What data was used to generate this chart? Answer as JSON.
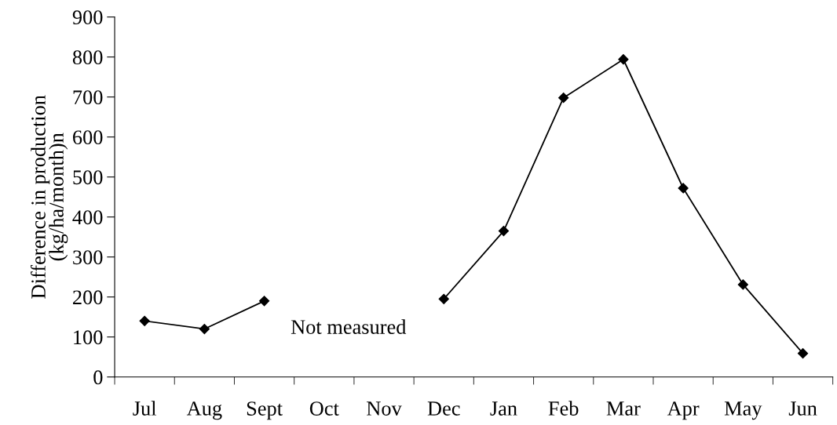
{
  "chart_data": {
    "type": "line",
    "ylabel": "Difference in production\n(kg/ha/month)n",
    "categories": [
      "Jul",
      "Aug",
      "Sept",
      "Oct",
      "Nov",
      "Dec",
      "Jan",
      "Feb",
      "Mar",
      "Apr",
      "May",
      "Jun"
    ],
    "series": [
      {
        "color": "#000000",
        "values": [
          140,
          120,
          190,
          null,
          null,
          195,
          365,
          698,
          794,
          472,
          231,
          59
        ]
      }
    ],
    "ylim": [
      0,
      900
    ],
    "yticks": [
      0,
      100,
      200,
      300,
      400,
      500,
      600,
      700,
      800,
      900
    ],
    "marker": "diamond",
    "line_style": "solid",
    "grid": false,
    "legend": false,
    "annotations": [
      "Not measured"
    ]
  }
}
